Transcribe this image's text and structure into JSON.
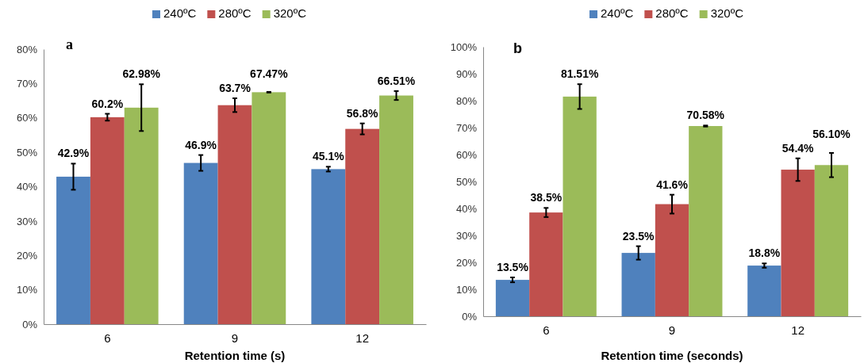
{
  "chart_data": [
    {
      "type": "bar",
      "title": "a",
      "xlabel": "Retention time (s)",
      "categories": [
        "6",
        "9",
        "12"
      ],
      "legend": "top",
      "grid": false,
      "ylim": [
        0,
        80
      ],
      "yticks": [
        {
          "value": 0,
          "label": "0%"
        },
        {
          "value": 10,
          "label": "10%"
        },
        {
          "value": 20,
          "label": "20%"
        },
        {
          "value": 30,
          "label": "30%"
        },
        {
          "value": 40,
          "label": "40%"
        },
        {
          "value": 50,
          "label": "50%"
        },
        {
          "value": 60,
          "label": "60%"
        },
        {
          "value": 70,
          "label": "70%"
        },
        {
          "value": 80,
          "label": "80%"
        }
      ],
      "series": [
        {
          "name": "240ºC",
          "color": "#4f81bd",
          "values": [
            42.9,
            46.9,
            45.1
          ],
          "errors": [
            3.8,
            2.3,
            0.7
          ],
          "value_labels": [
            "42.9%",
            "46.9%",
            "45.1%"
          ]
        },
        {
          "name": "280ºC",
          "color": "#c0504d",
          "values": [
            60.2,
            63.7,
            56.8
          ],
          "errors": [
            1,
            2,
            1.6
          ],
          "value_labels": [
            "60.2%",
            "63.7%",
            "56.8%"
          ]
        },
        {
          "name": "320ºC",
          "color": "#9bbb59",
          "values": [
            62.98,
            67.47,
            66.51
          ],
          "errors": [
            6.8,
            0.1,
            1.3
          ],
          "value_labels": [
            "62.98%",
            "67.47%",
            "66.51%"
          ]
        }
      ]
    },
    {
      "type": "bar",
      "title": "b",
      "xlabel": "Retention time (seconds)",
      "categories": [
        "6",
        "9",
        "12"
      ],
      "legend": "top",
      "grid": false,
      "ylim": [
        0,
        100
      ],
      "yticks": [
        {
          "value": 0,
          "label": "0%"
        },
        {
          "value": 10,
          "label": "10%"
        },
        {
          "value": 20,
          "label": "20%"
        },
        {
          "value": 30,
          "label": "30%"
        },
        {
          "value": 40,
          "label": "40%"
        },
        {
          "value": 50,
          "label": "50%"
        },
        {
          "value": 60,
          "label": "60%"
        },
        {
          "value": 70,
          "label": "70%"
        },
        {
          "value": 80,
          "label": "80%"
        },
        {
          "value": 90,
          "label": "90%"
        },
        {
          "value": 100,
          "label": "100%"
        }
      ],
      "series": [
        {
          "name": "240ºC",
          "color": "#4f81bd",
          "values": [
            13.5,
            23.5,
            18.8
          ],
          "errors": [
            0.9,
            2.5,
            0.8
          ],
          "value_labels": [
            "13.5%",
            "23.5%",
            "18.8%"
          ]
        },
        {
          "name": "280ºC",
          "color": "#c0504d",
          "values": [
            38.5,
            41.6,
            54.4
          ],
          "errors": [
            1.7,
            3.5,
            4.2
          ],
          "value_labels": [
            "38.5%",
            "41.6%",
            "54.4%"
          ]
        },
        {
          "name": "320ºC",
          "color": "#9bbb59",
          "values": [
            81.51,
            70.58,
            56.1
          ],
          "errors": [
            4.6,
            0.2,
            4.5
          ],
          "value_labels": [
            "81.51%",
            "70.58%",
            "56.10%"
          ]
        }
      ]
    }
  ]
}
